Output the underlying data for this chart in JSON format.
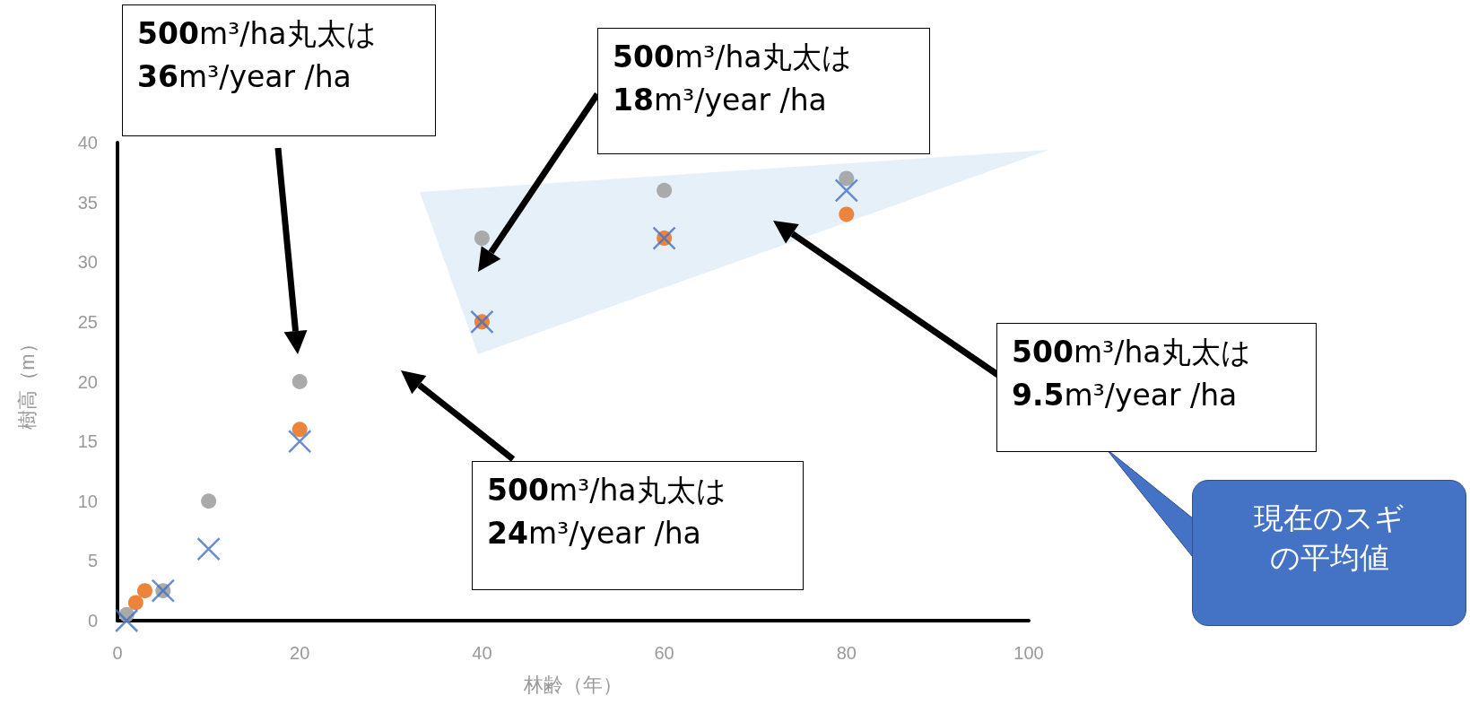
{
  "chart_data": {
    "type": "scatter",
    "xlabel": "林齢（年）",
    "ylabel": "樹高（m）",
    "xlim": [
      0,
      100
    ],
    "xticks": [
      0,
      20,
      40,
      60,
      80,
      100
    ],
    "ylim": [
      0,
      40
    ],
    "yticks": [
      0,
      5,
      10,
      15,
      20,
      25,
      30,
      35,
      40
    ],
    "grid": false,
    "series": [
      {
        "color": "#a5a5a5",
        "marker": "circle",
        "x": [
          1,
          5,
          10,
          20,
          40,
          60,
          80
        ],
        "values": [
          0.5,
          2.5,
          10,
          20,
          32,
          36,
          37
        ]
      },
      {
        "color": "#ed7d31",
        "marker": "circle",
        "x": [
          2,
          3,
          20,
          40,
          60,
          80
        ],
        "values": [
          1.5,
          2.5,
          16,
          25,
          32,
          34
        ]
      },
      {
        "color": "#4472c4",
        "marker": "cross",
        "x": [
          1,
          5,
          10,
          20,
          40,
          60,
          80
        ],
        "values": [
          0,
          2.5,
          6,
          15,
          25,
          32,
          36
        ]
      }
    ],
    "annotations": [
      "500m³/ha丸太は\n36m³/year /ha",
      "500m³/ha丸太は\n18m³/year /ha",
      "500m³/ha丸太は\n24m³/year /ha",
      "500m³/ha丸太は\n9.5m³/year /ha",
      "現在のスギの平均値"
    ]
  }
}
